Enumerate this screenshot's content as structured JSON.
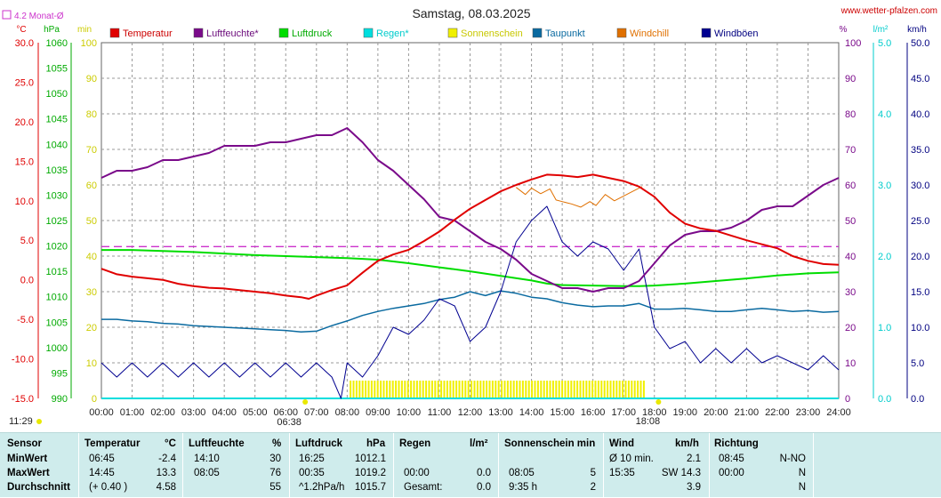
{
  "header": {
    "title": "Samstag, 08.03.2025",
    "site": "www.wetter-pfalzen.com",
    "avg_note": "4.2 Monat-Ø",
    "sunrise": "06:38",
    "sunset": "18:08",
    "clock": "11:29"
  },
  "colors": {
    "temperature": "#e00000",
    "humidity": "#7a0a8a",
    "pressure": "#00dd00",
    "rain": "#00dede",
    "sunshine": "#f0f000",
    "dewpoint": "#0a6aa0",
    "windchill": "#e07000",
    "gusts": "#000090",
    "avgline": "#cc33cc",
    "table_bg": "#cfecec"
  },
  "chart_data": {
    "type": "line",
    "x_ticks": [
      "00:00",
      "01:00",
      "02:00",
      "03:00",
      "04:00",
      "05:00",
      "06:00",
      "07:00",
      "08:00",
      "09:00",
      "10:00",
      "11:00",
      "12:00",
      "13:00",
      "14:00",
      "15:00",
      "16:00",
      "17:00",
      "18:00",
      "19:00",
      "20:00",
      "21:00",
      "22:00",
      "23:00",
      "24:00"
    ],
    "axes": {
      "temp": {
        "unit": "°C",
        "min": -15,
        "max": 30,
        "ticks": [
          "30.0",
          "25.0",
          "20.0",
          "15.0",
          "10.0",
          "5.0",
          "0.0",
          "-5.0",
          "-10.0",
          "-15.0"
        ]
      },
      "hpa": {
        "unit": "hPa",
        "min": 990,
        "max": 1060,
        "ticks": [
          "1060",
          "1055",
          "1050",
          "1045",
          "1040",
          "1035",
          "1030",
          "1025",
          "1020",
          "1015",
          "1010",
          "1005",
          "1000",
          "995",
          "990"
        ]
      },
      "min": {
        "unit": "min",
        "min": 0,
        "max": 100,
        "ticks": [
          "100",
          "90",
          "80",
          "70",
          "60",
          "50",
          "40",
          "30",
          "20",
          "10",
          "0"
        ]
      },
      "pct": {
        "unit": "%",
        "min": 0,
        "max": 100,
        "ticks": [
          "100",
          "90",
          "80",
          "70",
          "60",
          "50",
          "40",
          "30",
          "20",
          "10",
          "0"
        ]
      },
      "lm2": {
        "unit": "l/m²",
        "min": 0,
        "max": 5,
        "ticks": [
          "5.0",
          "4.0",
          "3.0",
          "2.0",
          "1.0",
          "0.0"
        ]
      },
      "kmh": {
        "unit": "km/h",
        "min": 0,
        "max": 50,
        "ticks": [
          "50.0",
          "45.0",
          "40.0",
          "35.0",
          "30.0",
          "25.0",
          "20.0",
          "15.0",
          "10.0",
          "5.0",
          "0.0"
        ]
      }
    },
    "legend": [
      "Temperatur",
      "Luftfeuchte*",
      "Luftdruck",
      "Regen*",
      "Sonnenschein",
      "Taupunkt",
      "Windchill",
      "Windböen"
    ],
    "avg_temp": 4.2,
    "series": [
      {
        "name": "Temperatur",
        "axis": "temp",
        "x": [
          0,
          0.5,
          1,
          1.5,
          2,
          2.5,
          3,
          3.5,
          4,
          4.5,
          5,
          5.5,
          6,
          6.5,
          6.75,
          7,
          7.5,
          8,
          8.5,
          9,
          9.5,
          10,
          10.5,
          11,
          11.5,
          12,
          12.5,
          13,
          13.5,
          14,
          14.5,
          15,
          15.5,
          16,
          16.5,
          17,
          17.5,
          18,
          18.5,
          19,
          19.5,
          20,
          20.5,
          21,
          21.5,
          22,
          22.5,
          23,
          23.5,
          24
        ],
        "y": [
          1.4,
          0.7,
          0.4,
          0.2,
          0,
          -0.5,
          -0.8,
          -1.0,
          -1.1,
          -1.3,
          -1.5,
          -1.7,
          -2.0,
          -2.2,
          -2.4,
          -2.0,
          -1.3,
          -0.7,
          0.9,
          2.4,
          3.2,
          3.8,
          4.9,
          6.1,
          7.6,
          9.0,
          10.1,
          11.2,
          12.0,
          12.7,
          13.3,
          13.2,
          13.0,
          13.3,
          12.9,
          12.5,
          11.8,
          10.5,
          8.5,
          7.1,
          6.5,
          6.2,
          5.6,
          5.0,
          4.5,
          4.0,
          3.0,
          2.4,
          2.0,
          1.9
        ]
      },
      {
        "name": "Luftfeuchte*",
        "axis": "pct",
        "x": [
          0,
          0.5,
          1,
          1.5,
          2,
          2.5,
          3,
          3.5,
          4,
          4.5,
          5,
          5.5,
          6,
          6.5,
          7,
          7.5,
          8,
          8.5,
          9,
          9.5,
          10,
          10.5,
          11,
          11.5,
          12,
          12.5,
          13,
          13.5,
          14,
          14.5,
          15,
          15.5,
          16,
          16.5,
          17,
          17.5,
          18,
          18.5,
          19,
          19.5,
          20,
          20.5,
          21,
          21.5,
          22,
          22.5,
          23,
          23.5,
          24
        ],
        "y": [
          62,
          64,
          64,
          65,
          67,
          67,
          68,
          69,
          71,
          71,
          71,
          72,
          72,
          73,
          74,
          74,
          76,
          72,
          67,
          64,
          60,
          56,
          51,
          50,
          47,
          44,
          42,
          39,
          35,
          33,
          31,
          31,
          30,
          31,
          31,
          33,
          38,
          43,
          46,
          47,
          47,
          48,
          50,
          53,
          54,
          54,
          57,
          60,
          62
        ]
      },
      {
        "name": "Luftdruck",
        "axis": "hpa",
        "x": [
          0,
          1,
          2,
          3,
          4,
          5,
          6,
          7,
          8,
          9,
          10,
          11,
          12,
          13,
          14,
          14.5,
          15,
          16,
          17,
          17.5,
          18,
          19,
          20,
          21,
          22,
          23,
          24
        ],
        "y": [
          1019.2,
          1019.2,
          1019.0,
          1018.8,
          1018.5,
          1018.2,
          1018.0,
          1017.8,
          1017.6,
          1017.3,
          1016.6,
          1015.8,
          1015.0,
          1014.1,
          1013.2,
          1012.6,
          1012.3,
          1012.2,
          1012.1,
          1012.1,
          1012.2,
          1012.6,
          1013.1,
          1013.6,
          1014.2,
          1014.6,
          1014.8
        ]
      },
      {
        "name": "Regen*",
        "axis": "lm2",
        "x": [
          0,
          24
        ],
        "y": [
          0,
          0
        ]
      },
      {
        "name": "Sonnenschein",
        "axis": "min",
        "x": [
          8.08,
          17.68
        ],
        "y": [
          5,
          5
        ]
      },
      {
        "name": "Taupunkt",
        "axis": "temp",
        "x": [
          0,
          0.5,
          1,
          1.5,
          2,
          2.5,
          3,
          3.5,
          4,
          4.5,
          5,
          5.5,
          6,
          6.5,
          7,
          7.5,
          8,
          8.5,
          9,
          9.5,
          10,
          10.5,
          11,
          11.5,
          12,
          12.5,
          13,
          13.5,
          14,
          14.5,
          15,
          15.5,
          16,
          16.5,
          17,
          17.5,
          18,
          18.5,
          19,
          19.5,
          20,
          20.5,
          21,
          21.5,
          22,
          22.5,
          23,
          23.5,
          24
        ],
        "y": [
          -5.0,
          -5.0,
          -5.2,
          -5.3,
          -5.5,
          -5.6,
          -5.8,
          -5.9,
          -6.0,
          -6.1,
          -6.2,
          -6.3,
          -6.4,
          -6.6,
          -6.5,
          -5.8,
          -5.2,
          -4.5,
          -4.0,
          -3.6,
          -3.3,
          -3.0,
          -2.5,
          -2.2,
          -1.5,
          -2.0,
          -1.4,
          -1.7,
          -2.2,
          -2.4,
          -2.9,
          -3.2,
          -3.4,
          -3.3,
          -3.3,
          -3.0,
          -3.7,
          -3.7,
          -3.6,
          -3.8,
          -4.0,
          -4.0,
          -3.8,
          -3.6,
          -3.8,
          -4.0,
          -3.9,
          -4.1,
          -4.0
        ]
      },
      {
        "name": "Windchill",
        "axis": "temp",
        "x": [
          13.5,
          13.8,
          14,
          14.3,
          14.6,
          14.8,
          15,
          15.3,
          15.6,
          15.9,
          16.1,
          16.4,
          16.7,
          17,
          17.3,
          17.6
        ],
        "y": [
          11.7,
          10.8,
          11.6,
          10.9,
          11.5,
          10.1,
          9.9,
          9.6,
          9.2,
          9.9,
          9.4,
          10.8,
          10.0,
          10.6,
          11.2,
          11.8
        ]
      },
      {
        "name": "Windböen",
        "axis": "kmh",
        "x": [
          0,
          0.5,
          1,
          1.5,
          2,
          2.5,
          3,
          3.5,
          4,
          4.5,
          5,
          5.5,
          6,
          6.5,
          7,
          7.5,
          7.8,
          8,
          8.5,
          9,
          9.5,
          10,
          10.5,
          11,
          11.5,
          12,
          12.5,
          13,
          13.5,
          14,
          14.5,
          15,
          15.5,
          16,
          16.5,
          17,
          17.5,
          18,
          18.5,
          19,
          19.5,
          20,
          20.5,
          21,
          21.5,
          22,
          22.5,
          23,
          23.5,
          24
        ],
        "y": [
          5,
          3,
          5,
          3,
          5,
          3,
          5,
          3,
          5,
          3,
          5,
          3,
          5,
          3,
          5,
          3,
          0,
          5,
          3,
          6,
          10,
          9,
          11,
          14,
          13,
          8,
          10,
          15,
          22,
          25,
          27,
          22,
          20,
          22,
          21,
          18,
          21,
          10,
          7,
          8,
          5,
          7,
          5,
          7,
          5,
          6,
          5,
          4,
          6,
          4
        ]
      }
    ]
  },
  "table": {
    "headers": {
      "sensor": "Sensor",
      "temperatur": "Temperatur",
      "temp_unit": "°C",
      "luftfeuchte": "Luftfeuchte",
      "hum_unit": "%",
      "luftdruck": "Luftdruck",
      "press_unit": "hPa",
      "regen": "Regen",
      "rain_unit": "l/m²",
      "sonnenschein": "Sonnenschein min",
      "wind": "Wind",
      "wind_unit": "km/h",
      "richtung": "Richtung"
    },
    "rows": [
      {
        "label": "MinWert",
        "t_time": "06:45",
        "t_val": "-2.4",
        "h_time": "14:10",
        "h_val": "30",
        "p_time": "16:25",
        "p_val": "1012.1",
        "r_time": "",
        "r_val": "",
        "s_time": "",
        "s_val": "",
        "w_time": "Ø 10 min.",
        "w_val": "2.1",
        "d_time": "08:45",
        "d_val": "N-NO"
      },
      {
        "label": "MaxWert",
        "t_time": "14:45",
        "t_val": "13.3",
        "h_time": "08:05",
        "h_val": "76",
        "p_time": "00:35",
        "p_val": "1019.2",
        "r_time": "00:00",
        "r_val": "0.0",
        "s_time": "08:05",
        "s_val": "5",
        "w_time": "15:35",
        "w_val": "SW 14.3",
        "d_time": "00:00",
        "d_val": "N"
      },
      {
        "label": "Durchschnitt",
        "t_time": "(+ 0.40 )",
        "t_val": "4.58",
        "h_time": "",
        "h_val": "55",
        "p_time": "^1.2hPa/h",
        "p_val": "1015.7",
        "r_time": "Gesamt:",
        "r_val": "0.0",
        "s_time": "9:35 h",
        "s_val": "2",
        "w_time": "",
        "w_val": "3.9",
        "d_time": "",
        "d_val": "N"
      }
    ]
  }
}
